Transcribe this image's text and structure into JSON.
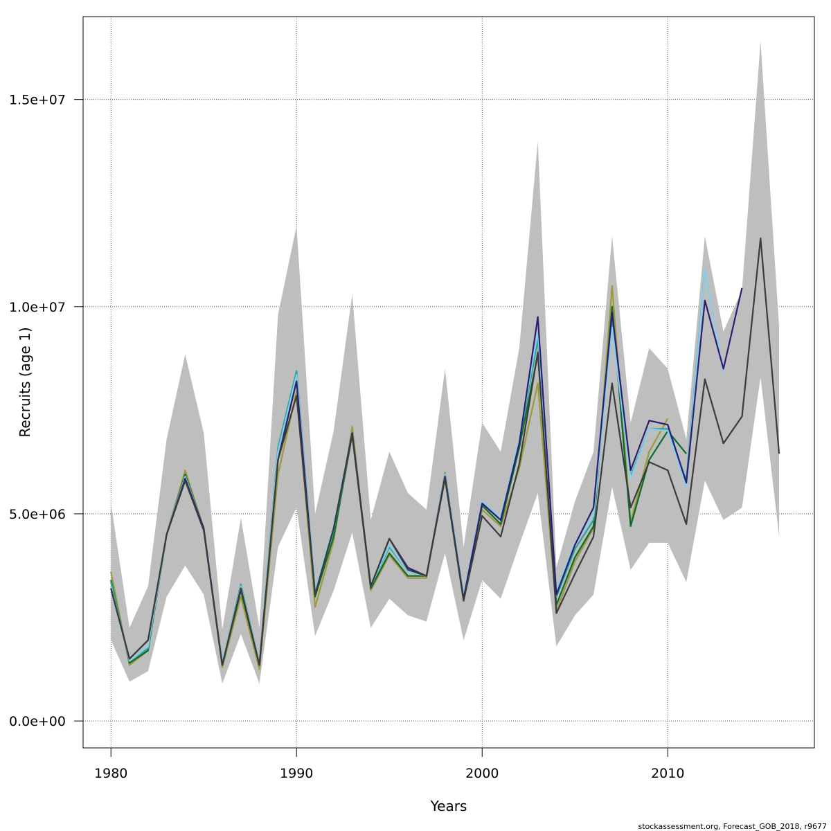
{
  "chart_data": {
    "type": "line",
    "xlabel": "Years",
    "ylabel": "Recruits (age 1)",
    "footer": "stockassessment.org, Forecast_GOB_2018, r9677",
    "xlim": [
      1978.5,
      2017.9
    ],
    "ylim": [
      -650000,
      17000000
    ],
    "xticks": [
      1980,
      1990,
      2000,
      2010
    ],
    "xtick_labels": [
      "1980",
      "1990",
      "2000",
      "2010"
    ],
    "yticks": [
      0,
      5000000,
      10000000,
      15000000
    ],
    "ytick_labels": [
      "0.0e+00",
      "5.0e+06",
      "1.0e+07",
      "1.5e+07"
    ],
    "grid": true,
    "colors": {
      "band": "#bebebe",
      "base": "#3b3b3b",
      "retro1": "#2a1e72",
      "retro2": "#87ceeb",
      "retro3": "#2aa39a",
      "retro4": "#0b6b2e",
      "retro5": "#9b9a3c"
    },
    "ci_band": {
      "x": [
        1980,
        1981,
        1982,
        1983,
        1984,
        1985,
        1986,
        1987,
        1988,
        1989,
        1990,
        1991,
        1992,
        1993,
        1994,
        1995,
        1996,
        1997,
        1998,
        1999,
        2000,
        2001,
        2002,
        2003,
        2004,
        2005,
        2006,
        2007,
        2008,
        2009,
        2010,
        2011,
        2012,
        2013,
        2014,
        2015,
        2016
      ],
      "lower": [
        1950000,
        950000,
        1200000,
        3000000,
        3750000,
        3050000,
        900000,
        2100000,
        900000,
        4200000,
        5150000,
        2050000,
        3150000,
        4550000,
        2250000,
        2950000,
        2550000,
        2400000,
        4050000,
        1950000,
        3400000,
        2950000,
        4250000,
        5500000,
        1800000,
        2550000,
        3050000,
        5650000,
        3650000,
        4300000,
        4300000,
        3350000,
        5800000,
        4850000,
        5150000,
        8300000,
        4450000
      ],
      "upper": [
        5250000,
        2250000,
        3250000,
        6800000,
        8850000,
        6950000,
        2200000,
        4900000,
        2250000,
        9800000,
        11950000,
        5000000,
        7000000,
        10300000,
        4850000,
        6500000,
        5500000,
        5100000,
        8500000,
        4200000,
        7200000,
        6500000,
        9000000,
        14000000,
        3700000,
        5300000,
        6500000,
        11700000,
        7200000,
        9000000,
        8500000,
        6800000,
        11700000,
        9400000,
        10400000,
        16400000,
        9500000
      ]
    },
    "series": [
      {
        "color_key": "base",
        "x": [
          1980,
          1981,
          1982,
          1983,
          1984,
          1985,
          1986,
          1987,
          1988,
          1989,
          1990,
          1991,
          1992,
          1993,
          1994,
          1995,
          1996,
          1997,
          1998,
          1999,
          2000,
          2001,
          2002,
          2003,
          2004,
          2005,
          2006,
          2007,
          2008,
          2009,
          2010,
          2011,
          2012,
          2013,
          2014,
          2015,
          2016
        ],
        "values": [
          3200000,
          1500000,
          1950000,
          4500000,
          5800000,
          4600000,
          1350000,
          3200000,
          1350000,
          6300000,
          7850000,
          3050000,
          4650000,
          6900000,
          3250000,
          4400000,
          3650000,
          3500000,
          5850000,
          2900000,
          4950000,
          4450000,
          6200000,
          8900000,
          2600000,
          3550000,
          4450000,
          8150000,
          5150000,
          6250000,
          6050000,
          4750000,
          8250000,
          6700000,
          7350000,
          11650000,
          6450000
        ]
      },
      {
        "color_key": "retro1",
        "x": [
          1980,
          1981,
          1982,
          1983,
          1984,
          1985,
          1986,
          1987,
          1988,
          1989,
          1990,
          1991,
          1992,
          1993,
          1994,
          1995,
          1996,
          1997,
          1998,
          1999,
          2000,
          2001,
          2002,
          2003,
          2004,
          2005,
          2006,
          2007,
          2008,
          2009,
          2010,
          2011,
          2012,
          2013,
          2014
        ],
        "values": [
          3200000,
          1500000,
          1950000,
          4500000,
          5850000,
          4650000,
          1350000,
          3200000,
          1350000,
          6300000,
          8200000,
          3050000,
          4650000,
          6950000,
          3250000,
          4400000,
          3700000,
          3500000,
          5900000,
          2950000,
          5250000,
          4850000,
          6700000,
          9750000,
          3050000,
          4250000,
          5150000,
          9850000,
          6050000,
          7250000,
          7150000,
          5750000,
          10150000,
          8500000,
          10450000
        ]
      },
      {
        "color_key": "retro2",
        "x": [
          1980,
          1981,
          1982,
          1983,
          1984,
          1985,
          1986,
          1987,
          1988,
          1989,
          1990,
          1991,
          1992,
          1993,
          1994,
          1995,
          1996,
          1997,
          1998,
          1999,
          2000,
          2001,
          2002,
          2003,
          2004,
          2005,
          2006,
          2007,
          2008,
          2009,
          2010,
          2011,
          2012,
          2013
        ],
        "values": [
          3250000,
          1450000,
          1800000,
          4500000,
          5900000,
          4650000,
          1400000,
          3250000,
          1400000,
          6500000,
          8350000,
          3150000,
          4700000,
          6950000,
          3250000,
          4250000,
          3600000,
          3500000,
          5950000,
          3000000,
          5300000,
          4900000,
          6800000,
          9400000,
          3150000,
          4300000,
          4950000,
          9500000,
          5850000,
          7050000,
          7000000,
          5650000,
          10900000,
          8400000
        ]
      },
      {
        "color_key": "retro3",
        "x": [
          1980,
          1981,
          1982,
          1983,
          1984,
          1985,
          1986,
          1987,
          1988,
          1989,
          1990,
          1991,
          1992,
          1993,
          1994,
          1995,
          1996,
          1997,
          1998,
          1999,
          2000,
          2001,
          2002,
          2003,
          2004,
          2005,
          2006,
          2007,
          2008,
          2009,
          2010,
          2011,
          2012
        ],
        "values": [
          3350000,
          1450000,
          1750000,
          4500000,
          5900000,
          4650000,
          1400000,
          3300000,
          1400000,
          6600000,
          8450000,
          3150000,
          4600000,
          6900000,
          3250000,
          4200000,
          3600000,
          3500000,
          5950000,
          3000000,
          5250000,
          4850000,
          6750000,
          9200000,
          3000000,
          4150000,
          4850000,
          9700000,
          5900000,
          7050000,
          7050000,
          5800000,
          10900000
        ]
      },
      {
        "color_key": "retro4",
        "x": [
          1980,
          1981,
          1982,
          1983,
          1984,
          1985,
          1986,
          1987,
          1988,
          1989,
          1990,
          1991,
          1992,
          1993,
          1994,
          1995,
          1996,
          1997,
          1998,
          1999,
          2000,
          2001,
          2002,
          2003,
          2004,
          2005,
          2006,
          2007,
          2008,
          2009,
          2010,
          2011
        ],
        "values": [
          3400000,
          1400000,
          1700000,
          4500000,
          5950000,
          4650000,
          1350000,
          3150000,
          1350000,
          6500000,
          8300000,
          3000000,
          4450000,
          6900000,
          3200000,
          4050000,
          3500000,
          3500000,
          5950000,
          3000000,
          5200000,
          4750000,
          6600000,
          8850000,
          2800000,
          3950000,
          4700000,
          10000000,
          4700000,
          6300000,
          7000000,
          6450000
        ]
      },
      {
        "color_key": "retro5",
        "x": [
          1980,
          1981,
          1982,
          1983,
          1984,
          1985,
          1986,
          1987,
          1988,
          1989,
          1990,
          1991,
          1992,
          1993,
          1994,
          1995,
          1996,
          1997,
          1998,
          1999,
          2000,
          2001,
          2002,
          2003,
          2004,
          2005,
          2006,
          2007,
          2008,
          2009,
          2010
        ],
        "values": [
          3600000,
          1350000,
          1700000,
          4500000,
          6050000,
          4650000,
          1300000,
          3000000,
          1250000,
          5950000,
          7950000,
          2750000,
          4350000,
          7100000,
          3150000,
          4000000,
          3450000,
          3450000,
          6000000,
          2950000,
          5100000,
          4700000,
          6100000,
          8150000,
          2650000,
          3850000,
          4650000,
          10500000,
          4800000,
          6500000,
          7300000
        ]
      }
    ]
  }
}
